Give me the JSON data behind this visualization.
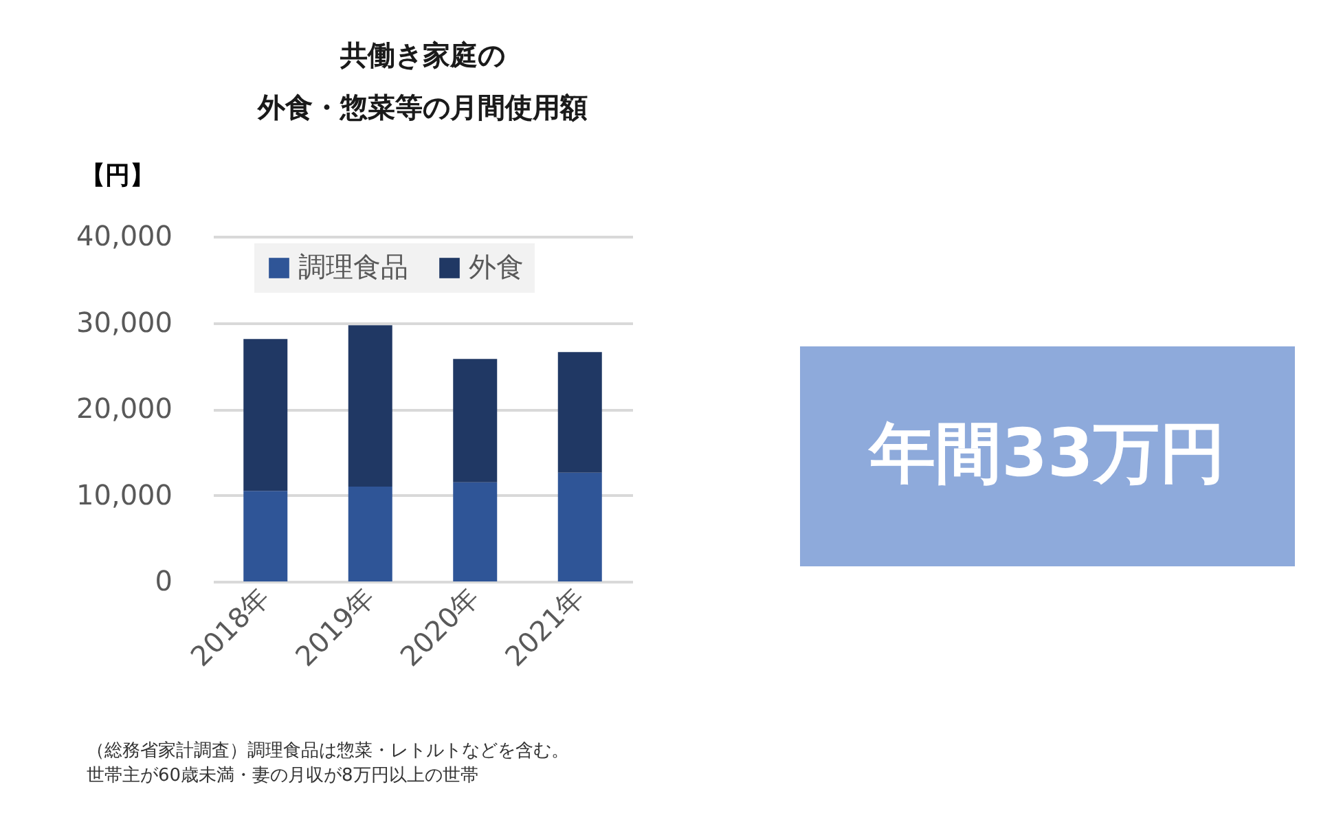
{
  "chart_data": {
    "type": "bar",
    "stacked": true,
    "title": [
      "共働き家庭の",
      "外食・惣菜等の月間使用額"
    ],
    "ylabel": "【円】",
    "categories": [
      "2018年",
      "2019年",
      "2020年",
      "2021年"
    ],
    "series": [
      {
        "name": "調理食品",
        "color": "#2f5597",
        "values": [
          10500,
          11000,
          11500,
          12600
        ]
      },
      {
        "name": "外食",
        "color": "#203864",
        "values": [
          17600,
          18700,
          14300,
          14000
        ]
      }
    ],
    "ylim": [
      0,
      40000
    ],
    "yticks": [
      0,
      {
        "value": 10000,
        "label": "10,000"
      },
      {
        "value": 20000,
        "label": "20,000"
      },
      {
        "value": 30000,
        "label": "30,000"
      },
      {
        "value": 40000,
        "label": "40,000"
      }
    ],
    "grid": "y",
    "legend": "top",
    "annotations": [
      "年間33万円",
      "（総務省家計調査）調理食品は惣菜・レトルトなどを含む。",
      "世帯主が60歳未満・妻の月収が8万円以上の世帯"
    ]
  }
}
